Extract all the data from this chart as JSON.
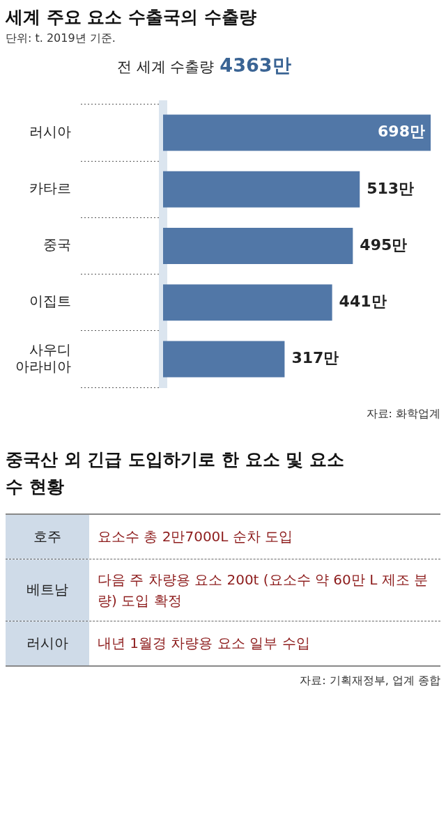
{
  "chart_data": [
    {
      "type": "bar",
      "orientation": "horizontal",
      "title": "세계 주요 요소 수출국의 수출량",
      "subtitle": "단위: t. 2019년 기준.",
      "categories": [
        "러시아",
        "카타르",
        "중국",
        "이집트",
        "사우디 아라비아"
      ],
      "values": [
        698,
        513,
        495,
        441,
        317
      ],
      "value_labels": [
        "698만",
        "513만",
        "495만",
        "441만",
        "317만"
      ],
      "color": "#5177a7",
      "annotations": [
        "전 세계 수출량 4363만",
        "자료: 화학업계"
      ]
    },
    {
      "type": "other",
      "title": "중국산 외 긴급 도입하기로 한 요소 및 요소수 현황",
      "categories": [
        "호주",
        "베트남",
        "러시아"
      ],
      "annotations": [
        "요소수 총 2만7000L 순차 도입",
        "다음 주 차량용 요소 200t (요소수 약 60만 L 제조 분량) 도입 확정",
        "내년 1월경 차량용 요소 일부 수입",
        "자료: 기획재정부, 업계 종합"
      ]
    }
  ]
}
